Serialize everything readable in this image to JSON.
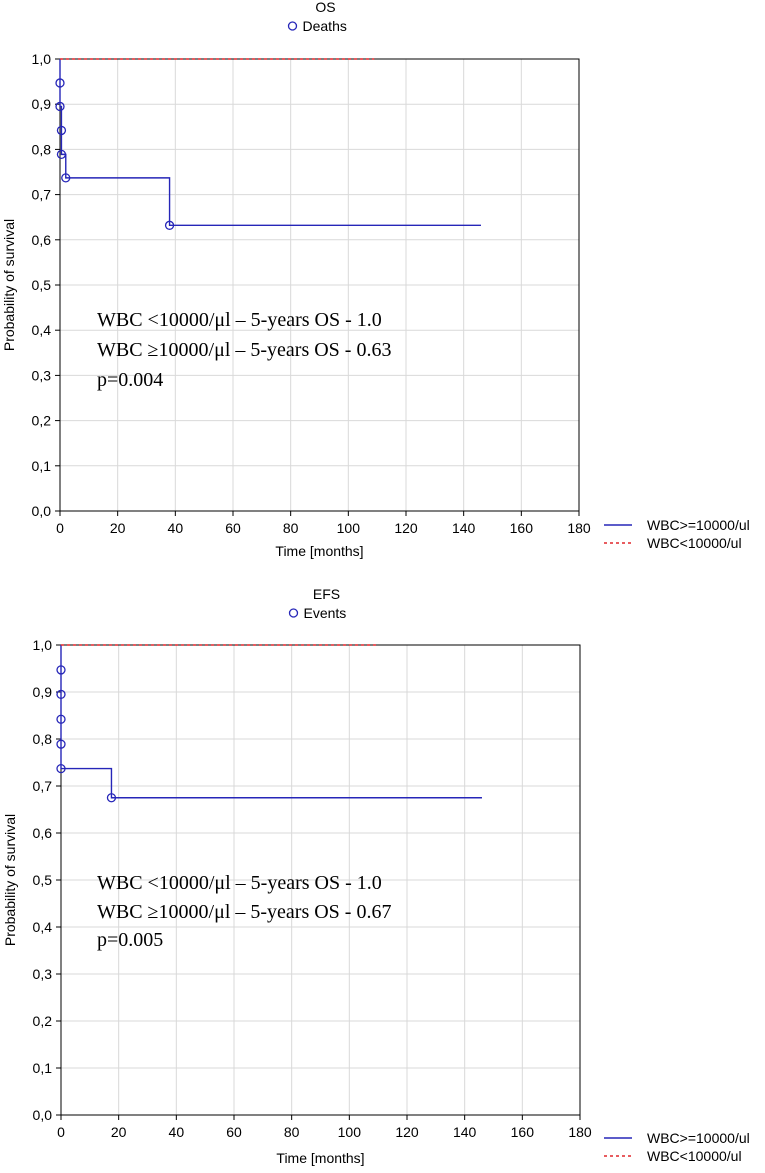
{
  "chart_data": [
    {
      "type": "line",
      "title": "OS",
      "marker_legend": "Deaths",
      "xlabel": "Time [months]",
      "ylabel": "Probability of survival",
      "xlim": [
        0,
        180
      ],
      "ylim": [
        0,
        1
      ],
      "x_ticks": [
        "0",
        "20",
        "40",
        "60",
        "80",
        "100",
        "120",
        "140",
        "160",
        "180"
      ],
      "y_ticks": [
        "0,0",
        "0,1",
        "0,2",
        "0,3",
        "0,4",
        "0,5",
        "0,6",
        "0,7",
        "0,8",
        "0,9",
        "1,0"
      ],
      "grid": true,
      "legend_position": "bottom-right outside",
      "series": [
        {
          "name": "WBC>=10000/ul",
          "color": "#2626b8",
          "style": "solid",
          "steps": [
            [
              0,
              1.0
            ],
            [
              0,
              0.947
            ],
            [
              0,
              0.895
            ],
            [
              0.5,
              0.842
            ],
            [
              0.5,
              0.789
            ],
            [
              2,
              0.737
            ],
            [
              38,
              0.632
            ],
            [
              146,
              0.632
            ]
          ],
          "markers": [
            [
              0,
              0.947
            ],
            [
              0,
              0.895
            ],
            [
              0.5,
              0.842
            ],
            [
              0.5,
              0.789
            ],
            [
              2,
              0.737
            ],
            [
              38,
              0.632
            ]
          ]
        },
        {
          "name": "WBC<10000/ul",
          "color": "#e0262b",
          "style": "dotted",
          "steps": [
            [
              0,
              1.0
            ],
            [
              109,
              1.0
            ]
          ],
          "markers": []
        }
      ],
      "annotations": [
        "WBC <10000/μl – 5-years OS - 1.0",
        "WBC ≥10000/μl – 5-years OS - 0.63",
        "p=0.004"
      ]
    },
    {
      "type": "line",
      "title": "EFS",
      "marker_legend": "Events",
      "xlabel": "Time [months]",
      "ylabel": "Probability of survival",
      "xlim": [
        0,
        180
      ],
      "ylim": [
        0,
        1
      ],
      "x_ticks": [
        "0",
        "20",
        "40",
        "60",
        "80",
        "100",
        "120",
        "140",
        "160",
        "180"
      ],
      "y_ticks": [
        "0,0",
        "0,1",
        "0,2",
        "0,3",
        "0,4",
        "0,5",
        "0,6",
        "0,7",
        "0,8",
        "0,9",
        "1,0"
      ],
      "grid": true,
      "legend_position": "bottom-right outside",
      "series": [
        {
          "name": "WBC>=10000/ul",
          "color": "#2626b8",
          "style": "solid",
          "steps": [
            [
              0,
              1.0
            ],
            [
              0,
              0.947
            ],
            [
              0,
              0.895
            ],
            [
              0,
              0.842
            ],
            [
              0,
              0.789
            ],
            [
              0,
              0.737
            ],
            [
              17.5,
              0.675
            ],
            [
              146,
              0.675
            ]
          ],
          "markers": [
            [
              0,
              0.947
            ],
            [
              0,
              0.895
            ],
            [
              0,
              0.842
            ],
            [
              0,
              0.789
            ],
            [
              0,
              0.737
            ],
            [
              17.5,
              0.675
            ]
          ]
        },
        {
          "name": "WBC<10000/ul",
          "color": "#e0262b",
          "style": "dotted",
          "steps": [
            [
              0,
              1.0
            ],
            [
              110,
              1.0
            ]
          ],
          "markers": []
        }
      ],
      "annotations": [
        "WBC <10000/μl – 5-years OS - 1.0",
        "WBC ≥10000/μl – 5-years OS - 0.67",
        "p=0.005"
      ]
    }
  ]
}
